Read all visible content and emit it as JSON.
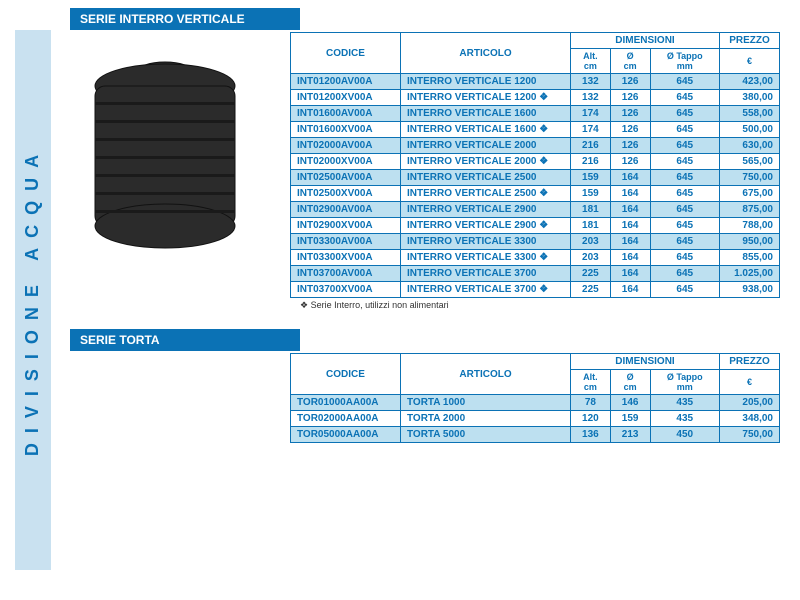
{
  "sidebar": {
    "label": "DIVISIONE ACQUA"
  },
  "section1": {
    "title": "SERIE INTERRO VERTICALE",
    "headers": {
      "codice": "CODICE",
      "articolo": "ARTICOLO",
      "dimensioni": "DIMENSIONI",
      "prezzo": "PREZZO",
      "euro": "€",
      "alt": "Alt.",
      "alt_u": "cm",
      "diam": "Ø",
      "diam_u": "cm",
      "tappo": "Ø Tappo",
      "tappo_u": "mm"
    },
    "rows": [
      {
        "c": "INT01200AV00A",
        "a": "INTERRO VERTICALE 1200",
        "alt": "132",
        "d": "126",
        "t": "645",
        "p": "423,00",
        "hl": true
      },
      {
        "c": "INT01200XV00A",
        "a": "INTERRO VERTICALE 1200 ❖",
        "alt": "132",
        "d": "126",
        "t": "645",
        "p": "380,00",
        "hl": false
      },
      {
        "c": "INT01600AV00A",
        "a": "INTERRO VERTICALE 1600",
        "alt": "174",
        "d": "126",
        "t": "645",
        "p": "558,00",
        "hl": true
      },
      {
        "c": "INT01600XV00A",
        "a": "INTERRO VERTICALE 1600 ❖",
        "alt": "174",
        "d": "126",
        "t": "645",
        "p": "500,00",
        "hl": false
      },
      {
        "c": "INT02000AV00A",
        "a": "INTERRO VERTICALE 2000",
        "alt": "216",
        "d": "126",
        "t": "645",
        "p": "630,00",
        "hl": true
      },
      {
        "c": "INT02000XV00A",
        "a": "INTERRO VERTICALE 2000 ❖",
        "alt": "216",
        "d": "126",
        "t": "645",
        "p": "565,00",
        "hl": false
      },
      {
        "c": "INT02500AV00A",
        "a": "INTERRO VERTICALE 2500",
        "alt": "159",
        "d": "164",
        "t": "645",
        "p": "750,00",
        "hl": true
      },
      {
        "c": "INT02500XV00A",
        "a": "INTERRO VERTICALE 2500 ❖",
        "alt": "159",
        "d": "164",
        "t": "645",
        "p": "675,00",
        "hl": false
      },
      {
        "c": "INT02900AV00A",
        "a": "INTERRO VERTICALE 2900",
        "alt": "181",
        "d": "164",
        "t": "645",
        "p": "875,00",
        "hl": true
      },
      {
        "c": "INT02900XV00A",
        "a": "INTERRO VERTICALE 2900 ❖",
        "alt": "181",
        "d": "164",
        "t": "645",
        "p": "788,00",
        "hl": false
      },
      {
        "c": "INT03300AV00A",
        "a": "INTERRO VERTICALE 3300",
        "alt": "203",
        "d": "164",
        "t": "645",
        "p": "950,00",
        "hl": true
      },
      {
        "c": "INT03300XV00A",
        "a": "INTERRO VERTICALE 3300 ❖",
        "alt": "203",
        "d": "164",
        "t": "645",
        "p": "855,00",
        "hl": false
      },
      {
        "c": "INT03700AV00A",
        "a": "INTERRO VERTICALE 3700",
        "alt": "225",
        "d": "164",
        "t": "645",
        "p": "1.025,00",
        "hl": true
      },
      {
        "c": "INT03700XV00A",
        "a": "INTERRO VERTICALE 3700 ❖",
        "alt": "225",
        "d": "164",
        "t": "645",
        "p": "938,00",
        "hl": false
      }
    ],
    "footnote": "❖ Serie Interro, utilizzi non alimentari"
  },
  "section2": {
    "title": "SERIE TORTA",
    "rows": [
      {
        "c": "TOR01000AA00A",
        "a": "TORTA  1000",
        "alt": "78",
        "d": "146",
        "t": "435",
        "p": "205,00",
        "hl": true
      },
      {
        "c": "TOR02000AA00A",
        "a": "TORTA  2000",
        "alt": "120",
        "d": "159",
        "t": "435",
        "p": "348,00",
        "hl": false
      },
      {
        "c": "TOR05000AA00A",
        "a": "TORTA  5000",
        "alt": "136",
        "d": "213",
        "t": "450",
        "p": "750,00",
        "hl": true
      }
    ]
  },
  "tank": {
    "body_fill": "#2b2b2b",
    "body_stroke": "#111"
  }
}
